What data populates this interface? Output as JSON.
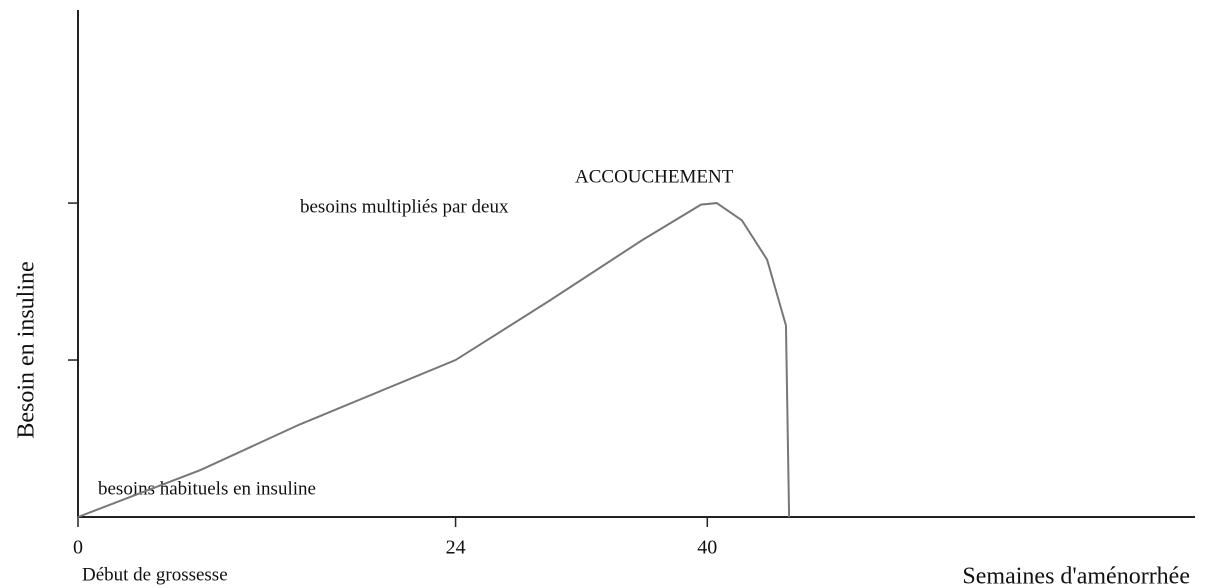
{
  "chart_data": {
    "type": "line",
    "x_label": "Semaines d'aménorrhée",
    "y_label": "Besoin en insuline",
    "annotations": [
      "ACCOUCHEMENT",
      "besoins multipliés par deux",
      "besoins habituels en insuline",
      "Début de grossesse"
    ],
    "x": [
      0,
      7.8,
      14.1,
      24,
      30,
      35.8,
      39.6,
      40.6,
      42.2,
      43.8,
      45,
      45.2
    ],
    "series": [
      {
        "name": "Besoin en insuline",
        "color": "#777777",
        "values": [
          0,
          0.3,
          0.59,
          1.0,
          1.38,
          1.76,
          1.99,
          2.0,
          1.89,
          1.64,
          1.22,
          0
        ]
      }
    ],
    "xlim": [
      0,
      71
    ],
    "xticks": [
      0,
      24,
      40
    ],
    "ylim": [
      0,
      3.23
    ],
    "yticks": [
      1,
      2
    ]
  }
}
